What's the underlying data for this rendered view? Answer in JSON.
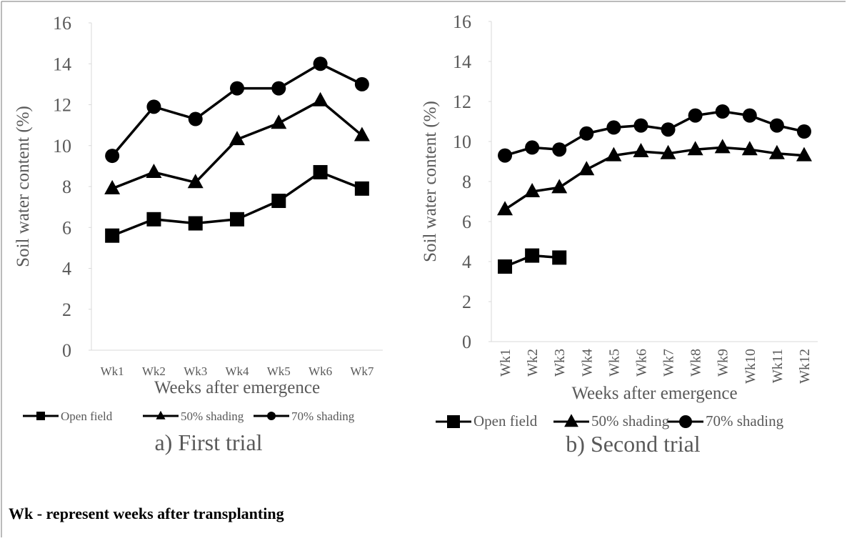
{
  "chart_data": [
    {
      "type": "line",
      "title": "a) First trial",
      "y_label": "Soil water content (%)",
      "x_label": "Weeks after emergence",
      "categories": [
        "Wk1",
        "Wk2",
        "Wk3",
        "Wk4",
        "Wk5",
        "Wk6",
        "Wk7"
      ],
      "series": [
        {
          "name": "Open field",
          "color": "#000000",
          "marker": "square",
          "values": [
            5.6,
            6.4,
            6.2,
            6.4,
            7.3,
            8.7,
            7.9
          ]
        },
        {
          "name": "50% shading",
          "color": "#000000",
          "marker": "triangle",
          "values": [
            7.9,
            8.7,
            8.2,
            10.3,
            11.1,
            12.2,
            10.5
          ]
        },
        {
          "name": "70% shading",
          "color": "#000000",
          "marker": "circle",
          "values": [
            9.5,
            11.9,
            11.3,
            12.8,
            12.8,
            14.0,
            13.0
          ]
        }
      ],
      "ylim": [
        0,
        16
      ],
      "yticks": [
        0,
        2,
        4,
        6,
        8,
        10,
        12,
        14,
        16
      ],
      "legend": "bottom"
    },
    {
      "type": "line",
      "title": "b) Second trial",
      "y_label": "Soil water content (%)",
      "x_label": "Weeks after emergence",
      "categories": [
        "Wk1",
        "Wk2",
        "Wk3",
        "Wk4",
        "Wk5",
        "Wk6",
        "Wk7",
        "Wk8",
        "Wk9",
        "Wk10",
        "Wk11",
        "Wk12"
      ],
      "series": [
        {
          "name": "Open field",
          "color": "#000000",
          "marker": "square",
          "values": [
            3.75,
            4.3,
            4.2,
            null,
            null,
            null,
            null,
            null,
            null,
            null,
            null,
            null
          ]
        },
        {
          "name": "50% shading",
          "color": "#000000",
          "marker": "triangle",
          "values": [
            6.6,
            7.5,
            7.7,
            8.6,
            9.3,
            9.5,
            9.4,
            9.6,
            9.7,
            9.6,
            9.4,
            9.3
          ]
        },
        {
          "name": "70% shading",
          "color": "#000000",
          "marker": "circle",
          "values": [
            9.3,
            9.7,
            9.6,
            10.4,
            10.7,
            10.8,
            10.6,
            11.3,
            11.5,
            11.3,
            10.8,
            10.5
          ]
        }
      ],
      "ylim": [
        0,
        16
      ],
      "yticks": [
        0,
        2,
        4,
        6,
        8,
        10,
        12,
        14,
        16
      ],
      "legend": "bottom"
    }
  ],
  "footnote": "Wk - represent weeks after transplanting"
}
